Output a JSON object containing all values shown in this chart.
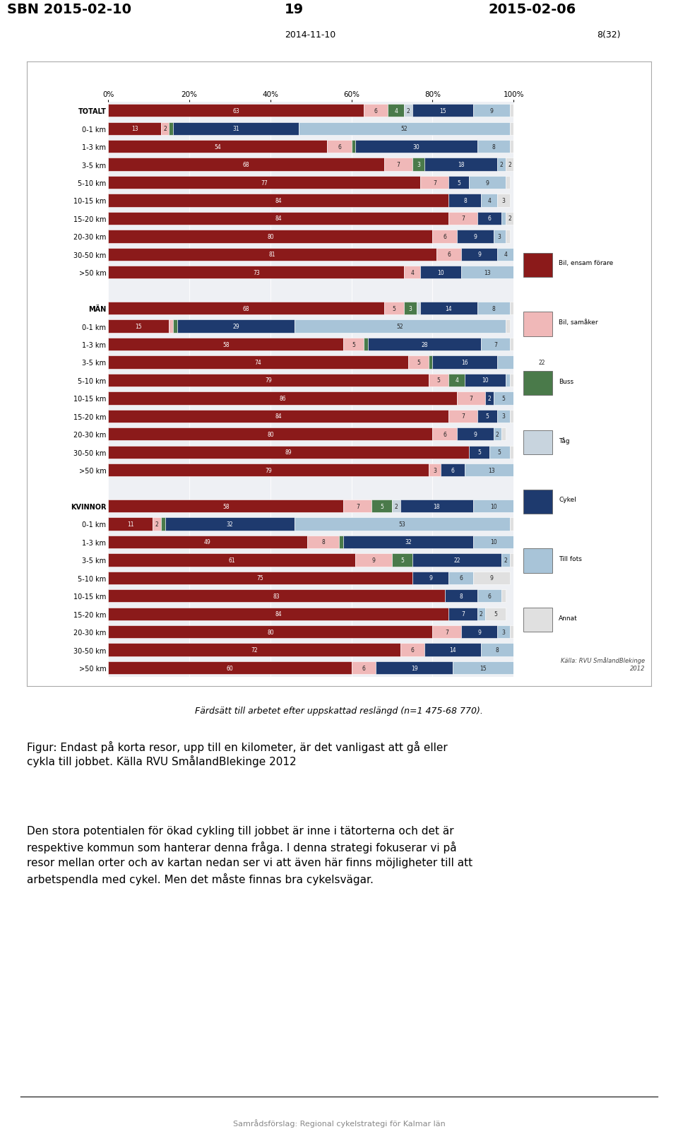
{
  "header_left": "SBN 2015-02-10",
  "header_center": "19",
  "header_right": "2015-02-06",
  "subheader_center": "2014-11-10",
  "subheader_right": "8(32)",
  "footer_text": "Samrådsförslag: Regional cykelstrategi för Kalmar län",
  "caption_chart": "Färdsätt till arbetet efter uppskattad reslängd (n=1 475-68 770).",
  "caption_fig": "Figur: Endast på korta resor, upp till en kilometer, är det vanligast att gå eller\ncykla till jobbet. Källa RVU SmålandBlekinge 2012",
  "body_text": "Den stora potentialen för ökad cykling till jobbet är inne i tätorterna och det är\nrespektive kommun som hanterar denna fråga. I denna strategi fokuserar vi på\nresor mellan orter och av kartan nedan ser vi att även här finns möjligheter till att\narbetspendla med cykel. Men det måste finnas bra cykelsvägar.",
  "source_note": "Källa: RVU SmålandBlekinge\n2012",
  "colors": {
    "bil_ensam": "#8B1A1A",
    "bil_samak": "#F0B8B8",
    "buss": "#4A7A4A",
    "tag": "#C8D4DE",
    "cykel": "#1E3A6E",
    "till_fots": "#A8C4D8",
    "annat": "#E0E0E0"
  },
  "legend_labels": [
    "Bil, ensam förare",
    "Bil, samåker",
    "Buss",
    "Tåg",
    "Cykel",
    "Till fots",
    "Annat"
  ],
  "rows": [
    {
      "label": "TOTALT",
      "bil_ensam": 63,
      "bil_samak": 6,
      "buss": 4,
      "tag": 2,
      "cykel": 15,
      "till_fots": 9,
      "annat": 1,
      "bold": true,
      "spacer": false
    },
    {
      "label": "0-1 km",
      "bil_ensam": 13,
      "bil_samak": 2,
      "buss": 1,
      "tag": 0,
      "cykel": 31,
      "till_fots": 52,
      "annat": 1,
      "bold": false,
      "spacer": false
    },
    {
      "label": "1-3 km",
      "bil_ensam": 54,
      "bil_samak": 6,
      "buss": 1,
      "tag": 0,
      "cykel": 30,
      "till_fots": 8,
      "annat": 1,
      "bold": false,
      "spacer": false
    },
    {
      "label": "3-5 km",
      "bil_ensam": 68,
      "bil_samak": 7,
      "buss": 3,
      "tag": 0,
      "cykel": 18,
      "till_fots": 2,
      "annat": 2,
      "bold": false,
      "spacer": false
    },
    {
      "label": "5-10 km",
      "bil_ensam": 77,
      "bil_samak": 7,
      "buss": 0,
      "tag": 0,
      "cykel": 5,
      "till_fots": 9,
      "annat": 1,
      "bold": false,
      "spacer": false
    },
    {
      "label": "10-15 km",
      "bil_ensam": 84,
      "bil_samak": 0,
      "buss": 0,
      "tag": 0,
      "cykel": 8,
      "till_fots": 4,
      "annat": 3,
      "bold": false,
      "spacer": false
    },
    {
      "label": "15-20 km",
      "bil_ensam": 84,
      "bil_samak": 7,
      "buss": 0,
      "tag": 0,
      "cykel": 6,
      "till_fots": 1,
      "annat": 2,
      "bold": false,
      "spacer": false
    },
    {
      "label": "20-30 km",
      "bil_ensam": 80,
      "bil_samak": 6,
      "buss": 0,
      "tag": 0,
      "cykel": 9,
      "till_fots": 3,
      "annat": 1,
      "bold": false,
      "spacer": false
    },
    {
      "label": "30-50 km",
      "bil_ensam": 81,
      "bil_samak": 6,
      "buss": 0,
      "tag": 0,
      "cykel": 9,
      "till_fots": 4,
      "annat": 0,
      "bold": false,
      "spacer": false
    },
    {
      "label": ">50 km",
      "bil_ensam": 73,
      "bil_samak": 4,
      "buss": 0,
      "tag": 0,
      "cykel": 10,
      "till_fots": 13,
      "annat": 0,
      "bold": false,
      "spacer": false
    },
    {
      "label": "",
      "bil_ensam": 0,
      "bil_samak": 0,
      "buss": 0,
      "tag": 0,
      "cykel": 0,
      "till_fots": 0,
      "annat": 0,
      "bold": false,
      "spacer": true
    },
    {
      "label": "MÄN",
      "bil_ensam": 68,
      "bil_samak": 5,
      "buss": 3,
      "tag": 1,
      "cykel": 14,
      "till_fots": 8,
      "annat": 1,
      "bold": true,
      "spacer": false
    },
    {
      "label": "0-1 km",
      "bil_ensam": 15,
      "bil_samak": 1,
      "buss": 1,
      "tag": 0,
      "cykel": 29,
      "till_fots": 52,
      "annat": 1,
      "bold": false,
      "spacer": false
    },
    {
      "label": "1-3 km",
      "bil_ensam": 58,
      "bil_samak": 5,
      "buss": 1,
      "tag": 0,
      "cykel": 28,
      "till_fots": 7,
      "annat": 1,
      "bold": false,
      "spacer": false
    },
    {
      "label": "3-5 km",
      "bil_ensam": 74,
      "bil_samak": 5,
      "buss": 1,
      "tag": 0,
      "cykel": 16,
      "till_fots": 22,
      "annat": 0,
      "bold": false,
      "spacer": false
    },
    {
      "label": "5-10 km",
      "bil_ensam": 79,
      "bil_samak": 5,
      "buss": 4,
      "tag": 0,
      "cykel": 10,
      "till_fots": 1,
      "annat": 1,
      "bold": false,
      "spacer": false
    },
    {
      "label": "10-15 km",
      "bil_ensam": 86,
      "bil_samak": 7,
      "buss": 0,
      "tag": 0,
      "cykel": 2,
      "till_fots": 5,
      "annat": 0,
      "bold": false,
      "spacer": false
    },
    {
      "label": "15-20 km",
      "bil_ensam": 84,
      "bil_samak": 7,
      "buss": 0,
      "tag": 0,
      "cykel": 5,
      "till_fots": 3,
      "annat": 1,
      "bold": false,
      "spacer": false
    },
    {
      "label": "20-30 km",
      "bil_ensam": 80,
      "bil_samak": 6,
      "buss": 0,
      "tag": 0,
      "cykel": 9,
      "till_fots": 2,
      "annat": 1,
      "bold": false,
      "spacer": false
    },
    {
      "label": "30-50 km",
      "bil_ensam": 89,
      "bil_samak": 0,
      "buss": 0,
      "tag": 0,
      "cykel": 5,
      "till_fots": 5,
      "annat": 1,
      "bold": false,
      "spacer": false
    },
    {
      "label": ">50 km",
      "bil_ensam": 79,
      "bil_samak": 3,
      "buss": 0,
      "tag": 0,
      "cykel": 6,
      "till_fots": 13,
      "annat": 0,
      "bold": false,
      "spacer": false
    },
    {
      "label": "",
      "bil_ensam": 0,
      "bil_samak": 0,
      "buss": 0,
      "tag": 0,
      "cykel": 0,
      "till_fots": 0,
      "annat": 0,
      "bold": false,
      "spacer": true
    },
    {
      "label": "KVINNOR",
      "bil_ensam": 58,
      "bil_samak": 7,
      "buss": 5,
      "tag": 2,
      "cykel": 18,
      "till_fots": 10,
      "annat": 0,
      "bold": true,
      "spacer": false
    },
    {
      "label": "0-1 km",
      "bil_ensam": 11,
      "bil_samak": 2,
      "buss": 1,
      "tag": 0,
      "cykel": 32,
      "till_fots": 53,
      "annat": 1,
      "bold": false,
      "spacer": false
    },
    {
      "label": "1-3 km",
      "bil_ensam": 49,
      "bil_samak": 8,
      "buss": 1,
      "tag": 0,
      "cykel": 32,
      "till_fots": 10,
      "annat": 0,
      "bold": false,
      "spacer": false
    },
    {
      "label": "3-5 km",
      "bil_ensam": 61,
      "bil_samak": 9,
      "buss": 5,
      "tag": 0,
      "cykel": 22,
      "till_fots": 2,
      "annat": 1,
      "bold": false,
      "spacer": false
    },
    {
      "label": "5-10 km",
      "bil_ensam": 75,
      "bil_samak": 0,
      "buss": 0,
      "tag": 0,
      "cykel": 9,
      "till_fots": 6,
      "annat": 9,
      "bold": false,
      "spacer": false
    },
    {
      "label": "10-15 km",
      "bil_ensam": 83,
      "bil_samak": 0,
      "buss": 0,
      "tag": 0,
      "cykel": 8,
      "till_fots": 6,
      "annat": 1,
      "bold": false,
      "spacer": false
    },
    {
      "label": "15-20 km",
      "bil_ensam": 84,
      "bil_samak": 0,
      "buss": 0,
      "tag": 0,
      "cykel": 7,
      "till_fots": 2,
      "annat": 5,
      "bold": false,
      "spacer": false
    },
    {
      "label": "20-30 km",
      "bil_ensam": 80,
      "bil_samak": 7,
      "buss": 0,
      "tag": 0,
      "cykel": 9,
      "till_fots": 3,
      "annat": 1,
      "bold": false,
      "spacer": false
    },
    {
      "label": "30-50 km",
      "bil_ensam": 72,
      "bil_samak": 6,
      "buss": 0,
      "tag": 0,
      "cykel": 14,
      "till_fots": 8,
      "annat": 0,
      "bold": false,
      "spacer": false
    },
    {
      "label": ">50 km",
      "bil_ensam": 60,
      "bil_samak": 6,
      "buss": 0,
      "tag": 0,
      "cykel": 19,
      "till_fots": 15,
      "annat": 0,
      "bold": false,
      "spacer": false
    }
  ]
}
